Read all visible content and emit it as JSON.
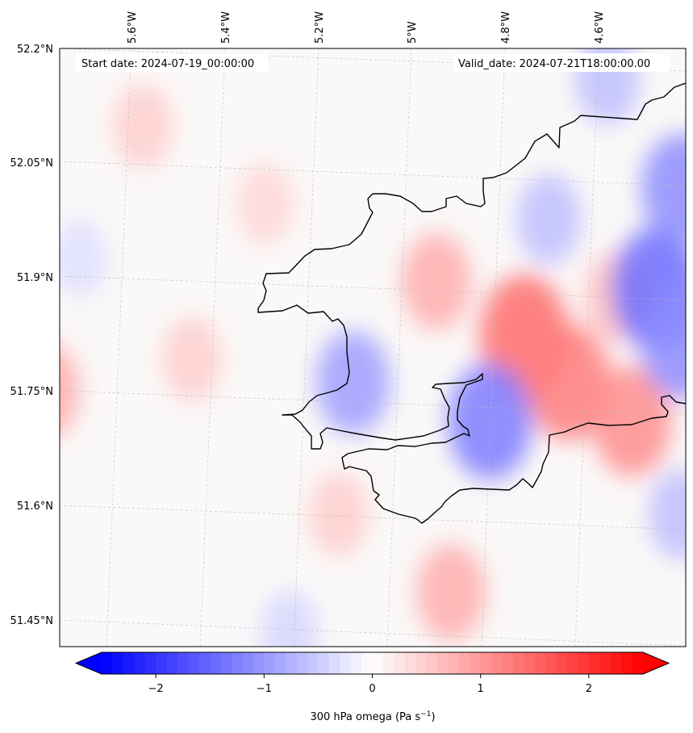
{
  "header": {
    "start_label": "Start date: 2024-07-19_00:00:00",
    "valid_label": "Valid_date: 2024-07-21T18:00:00.00"
  },
  "map": {
    "field": "300 hPa omega",
    "region": "South-west Wales / Pembrokeshire coast",
    "lat_ticks": [
      "52.2°N",
      "52.05°N",
      "51.9°N",
      "51.75°N",
      "51.6°N",
      "51.45°N"
    ],
    "lon_ticks": [
      "5.6°W",
      "5.4°W",
      "5.2°W",
      "5°W",
      "4.8°W",
      "4.6°W"
    ],
    "anomalies": [
      {
        "lon": -4.95,
        "lat": 51.9,
        "value": 0.5
      },
      {
        "lon": -4.77,
        "lat": 51.83,
        "value": 0.9
      },
      {
        "lon": -4.68,
        "lat": 51.77,
        "value": 0.8
      },
      {
        "lon": -4.55,
        "lat": 51.72,
        "value": 0.7
      },
      {
        "lon": -4.92,
        "lat": 51.5,
        "value": 0.5
      },
      {
        "lon": -5.75,
        "lat": 51.76,
        "value": 0.5
      },
      {
        "lon": -5.45,
        "lat": 51.8,
        "value": 0.3
      },
      {
        "lon": -5.15,
        "lat": 51.6,
        "value": 0.3
      },
      {
        "lon": -5.3,
        "lat": 52.0,
        "value": 0.25
      },
      {
        "lon": -5.55,
        "lat": 52.1,
        "value": 0.3
      },
      {
        "lon": -4.58,
        "lat": 51.88,
        "value": 0.4
      },
      {
        "lon": -5.12,
        "lat": 51.77,
        "value": -0.6
      },
      {
        "lon": -4.84,
        "lat": 51.72,
        "value": -0.8
      },
      {
        "lon": -4.5,
        "lat": 51.89,
        "value": -0.9
      },
      {
        "lon": -4.45,
        "lat": 51.82,
        "value": -0.7
      },
      {
        "lon": -4.45,
        "lat": 52.02,
        "value": -0.7
      },
      {
        "lon": -4.6,
        "lat": 52.16,
        "value": -0.4
      },
      {
        "lon": -4.72,
        "lat": 51.98,
        "value": -0.4
      },
      {
        "lon": -4.45,
        "lat": 51.6,
        "value": -0.4
      },
      {
        "lon": -5.25,
        "lat": 51.45,
        "value": -0.25
      },
      {
        "lon": -5.68,
        "lat": 51.93,
        "value": -0.2
      }
    ]
  },
  "colorbar": {
    "min": -2.5,
    "max": 2.5,
    "ticks": [
      -2,
      -1,
      0,
      1,
      2
    ],
    "tick_labels": [
      "−2",
      "−1",
      "0",
      "1",
      "2"
    ],
    "label_main": "300 hPa omega (Pa s",
    "label_sup": "−1",
    "label_end": ")",
    "colormap": "bwr",
    "color_low": "#0000ff",
    "color_mid": "#ffffff",
    "color_high": "#ff0000"
  }
}
